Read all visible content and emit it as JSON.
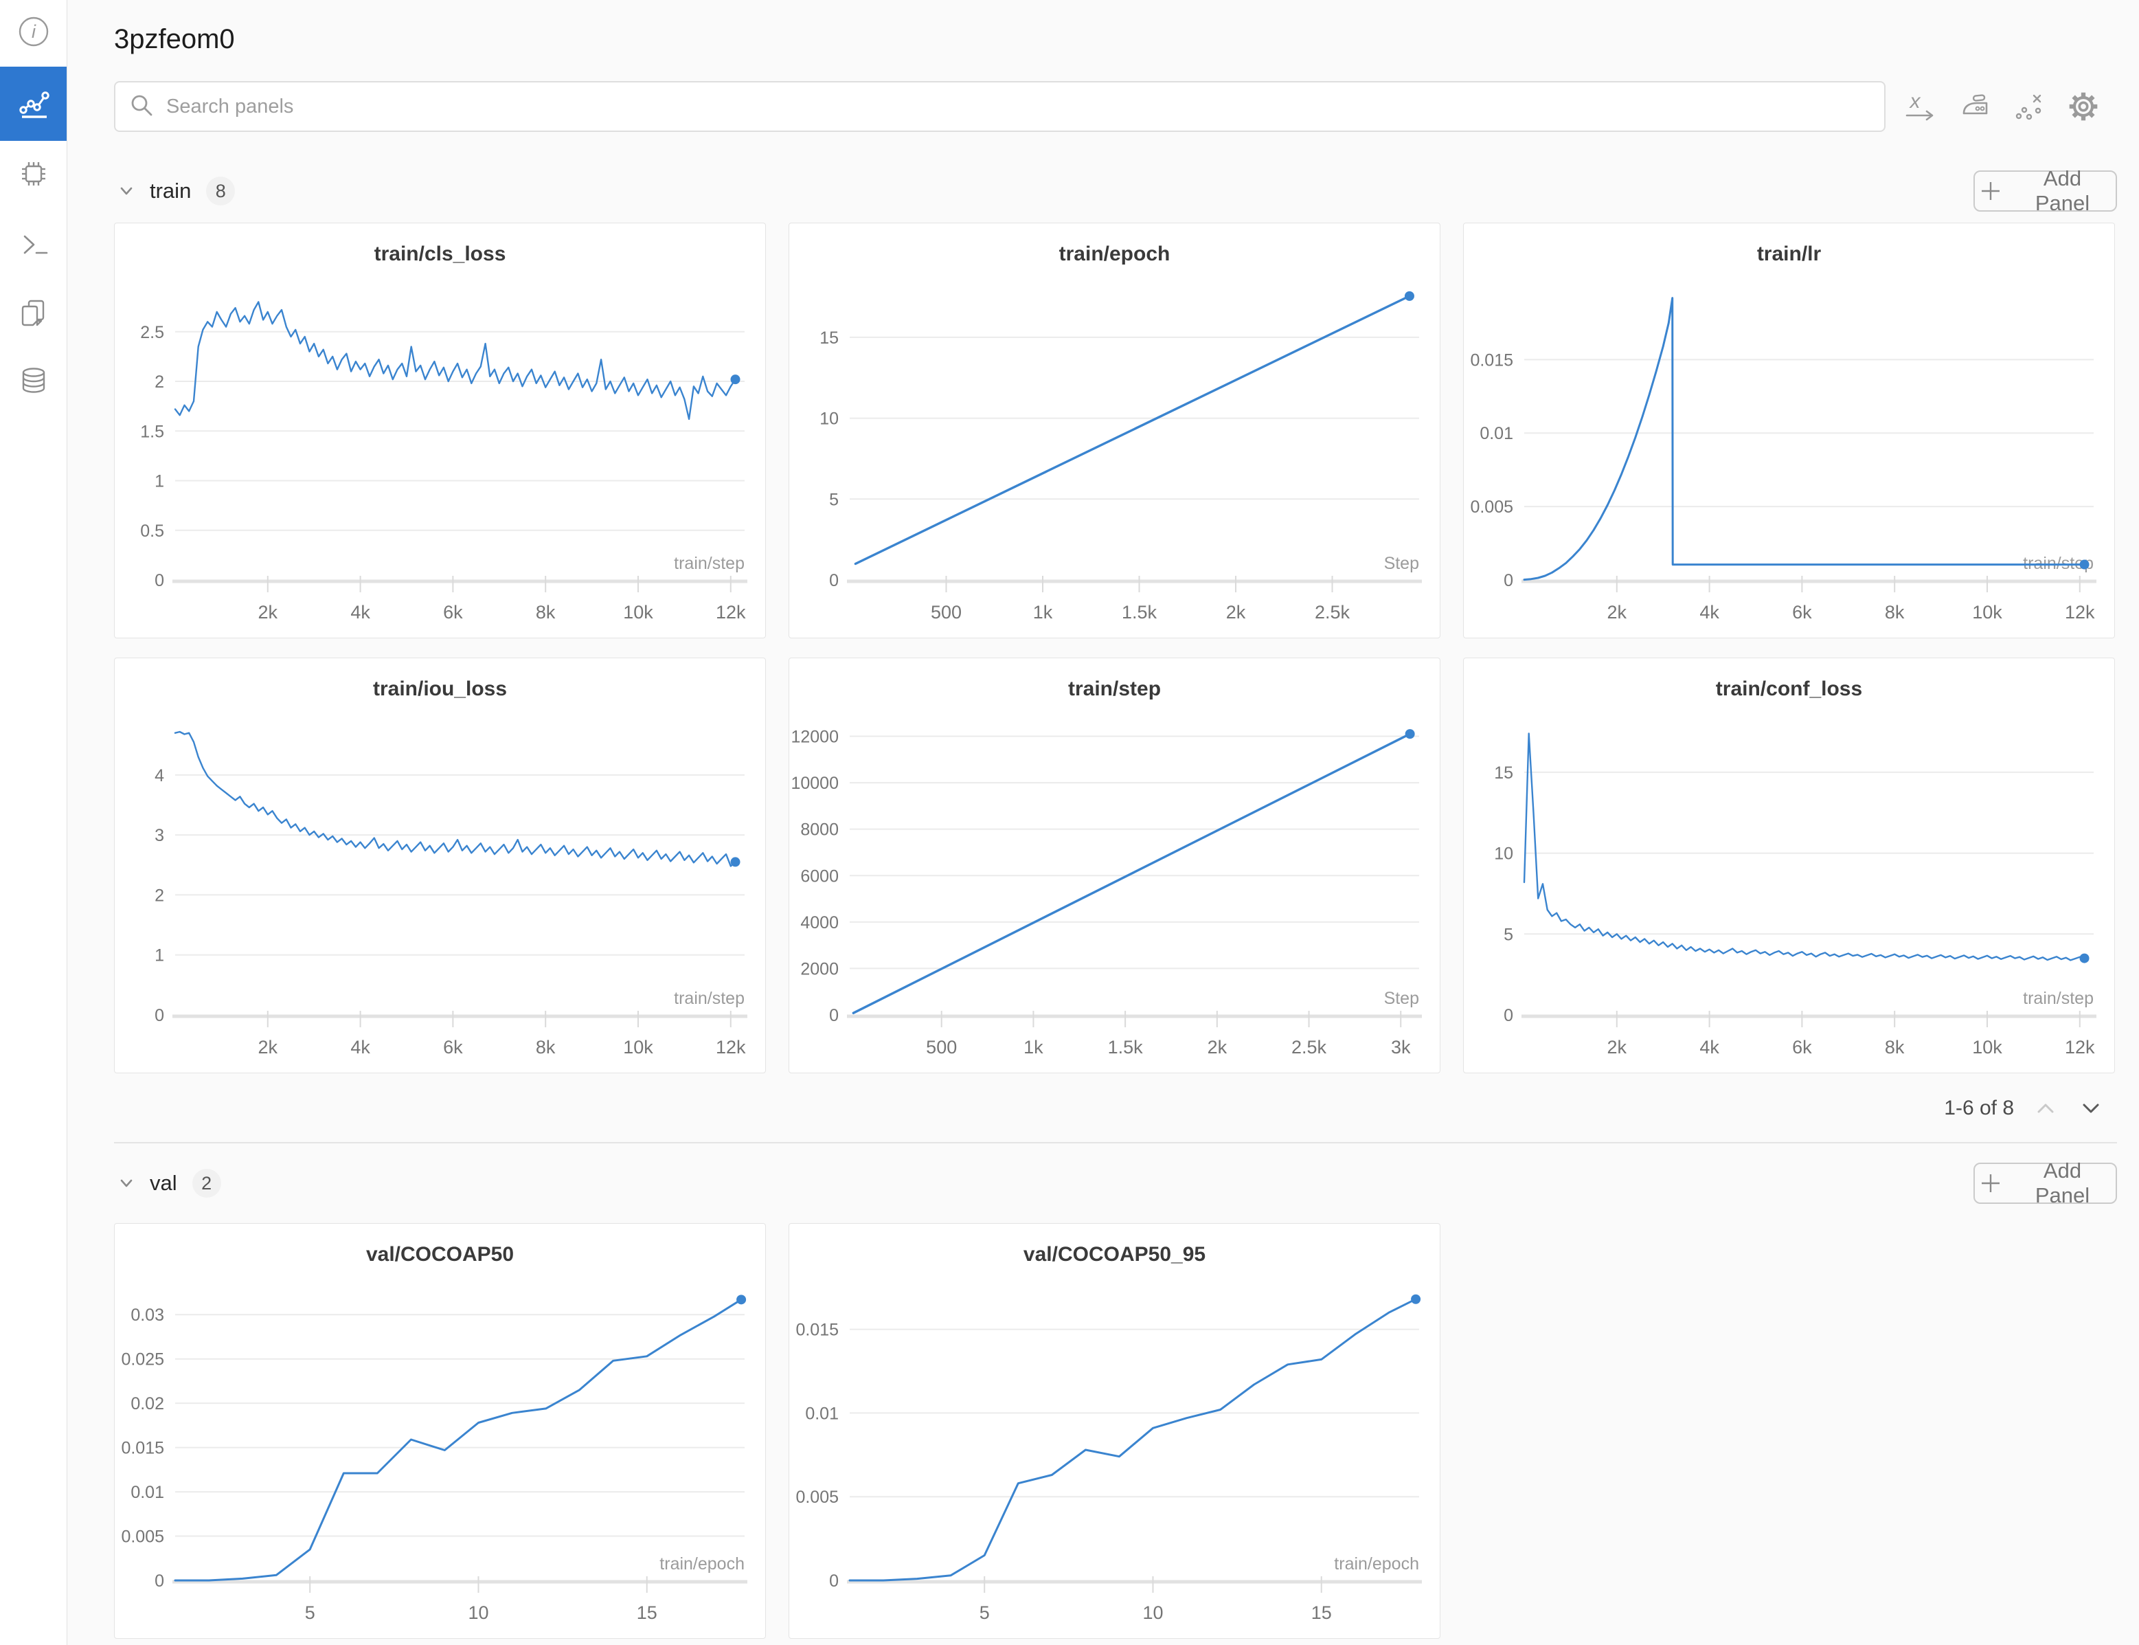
{
  "window": {
    "title": "3pzfeom0"
  },
  "search": {
    "placeholder": "Search panels",
    "value": ""
  },
  "colors": {
    "accent_blue": "#2e78d0",
    "line_blue": "#3a84cf",
    "panel_bg": "#ffffff",
    "page_bg": "#fafafa"
  },
  "sidebar": {
    "items": [
      {
        "icon": "info-icon",
        "selected": false
      },
      {
        "icon": "line-chart-icon",
        "selected": true
      },
      {
        "icon": "chip-icon",
        "selected": false
      },
      {
        "icon": "terminal-icon",
        "selected": false
      },
      {
        "icon": "files-icon",
        "selected": false
      },
      {
        "icon": "database-icon",
        "selected": false
      }
    ]
  },
  "toolbar": {
    "icons": [
      {
        "name": "x-axis-icon"
      },
      {
        "name": "smoothing-icon"
      },
      {
        "name": "outliers-icon"
      },
      {
        "name": "settings-gear-icon"
      }
    ]
  },
  "sections": [
    {
      "id": "train",
      "label": "train",
      "count": "8",
      "add_panel_label": "Add Panel",
      "pagination": {
        "text": "1-6 of 8"
      },
      "panels": [
        0,
        1,
        2,
        3,
        4,
        5
      ]
    },
    {
      "id": "val",
      "label": "val",
      "count": "2",
      "add_panel_label": "Add Panel",
      "panels": [
        6,
        7
      ]
    }
  ],
  "chart_data": [
    {
      "type": "line",
      "title": "train/cls_loss",
      "x_axis_label": "train/step",
      "xlim": [
        0,
        12300
      ],
      "ylim": [
        0,
        2.9
      ],
      "y_ticks": [
        [
          0,
          "0"
        ],
        [
          0.5,
          "0.5"
        ],
        [
          1,
          "1"
        ],
        [
          1.5,
          "1.5"
        ],
        [
          2,
          "2"
        ],
        [
          2.5,
          "2.5"
        ]
      ],
      "x_ticks": [
        [
          2000,
          "2k"
        ],
        [
          4000,
          "4k"
        ],
        [
          6000,
          "6k"
        ],
        [
          8000,
          "8k"
        ],
        [
          10000,
          "10k"
        ],
        [
          12000,
          "12k"
        ]
      ],
      "x_start": 0,
      "x_step": 100,
      "lw": 2.4,
      "y": [
        1.72,
        1.66,
        1.76,
        1.7,
        1.8,
        2.35,
        2.52,
        2.6,
        2.55,
        2.7,
        2.62,
        2.55,
        2.68,
        2.74,
        2.6,
        2.66,
        2.58,
        2.72,
        2.8,
        2.62,
        2.7,
        2.58,
        2.66,
        2.72,
        2.55,
        2.45,
        2.52,
        2.38,
        2.45,
        2.3,
        2.38,
        2.25,
        2.32,
        2.18,
        2.25,
        2.12,
        2.22,
        2.28,
        2.1,
        2.2,
        2.12,
        2.18,
        2.05,
        2.15,
        2.22,
        2.08,
        2.16,
        2.02,
        2.12,
        2.18,
        2.05,
        2.35,
        2.1,
        2.16,
        2.02,
        2.12,
        2.2,
        2.06,
        2.14,
        2.0,
        2.1,
        2.18,
        2.04,
        2.12,
        1.98,
        2.08,
        2.15,
        2.38,
        2.05,
        2.12,
        1.98,
        2.08,
        2.14,
        2.0,
        2.08,
        1.95,
        2.05,
        2.12,
        1.98,
        2.06,
        1.94,
        2.02,
        2.1,
        1.96,
        2.04,
        1.92,
        2.0,
        2.08,
        1.94,
        2.02,
        1.9,
        1.98,
        2.22,
        1.92,
        2.0,
        1.88,
        1.96,
        2.04,
        1.9,
        1.98,
        1.86,
        1.94,
        2.02,
        1.88,
        1.96,
        1.84,
        1.92,
        2.0,
        1.86,
        1.94,
        1.82,
        1.62,
        1.95,
        1.88,
        2.05,
        1.9,
        1.85,
        1.98,
        1.92,
        1.86,
        1.95,
        2.02
      ]
    },
    {
      "type": "line",
      "title": "train/epoch",
      "x_axis_label": "Step",
      "xlim": [
        0,
        2950
      ],
      "ylim": [
        0,
        17.8
      ],
      "y_ticks": [
        [
          0,
          "0"
        ],
        [
          5,
          "5"
        ],
        [
          10,
          "10"
        ],
        [
          15,
          "15"
        ]
      ],
      "x_ticks": [
        [
          500,
          "500"
        ],
        [
          1000,
          "1k"
        ],
        [
          1500,
          "1.5k"
        ],
        [
          2000,
          "2k"
        ],
        [
          2500,
          "2.5k"
        ]
      ],
      "lw": 3.4,
      "points": [
        [
          30,
          1.0
        ],
        [
          2900,
          17.55
        ]
      ]
    },
    {
      "type": "line",
      "title": "train/lr",
      "x_axis_label": "train/step",
      "xlim": [
        0,
        12300
      ],
      "ylim": [
        0,
        0.0196
      ],
      "y_ticks": [
        [
          0,
          "0"
        ],
        [
          0.005,
          "0.005"
        ],
        [
          0.01,
          "0.01"
        ],
        [
          0.015,
          "0.015"
        ]
      ],
      "x_ticks": [
        [
          2000,
          "2k"
        ],
        [
          4000,
          "4k"
        ],
        [
          6000,
          "6k"
        ],
        [
          8000,
          "8k"
        ],
        [
          10000,
          "10k"
        ],
        [
          12000,
          "12k"
        ]
      ],
      "lw": 3,
      "points": [
        [
          0,
          2e-05
        ],
        [
          150,
          6e-05
        ],
        [
          300,
          0.00014
        ],
        [
          450,
          0.00028
        ],
        [
          600,
          0.0005
        ],
        [
          750,
          0.0008
        ],
        [
          900,
          0.00115
        ],
        [
          1050,
          0.0016
        ],
        [
          1200,
          0.0021
        ],
        [
          1350,
          0.0027
        ],
        [
          1500,
          0.0034
        ],
        [
          1650,
          0.0042
        ],
        [
          1800,
          0.0051
        ],
        [
          1950,
          0.0061
        ],
        [
          2100,
          0.0072
        ],
        [
          2250,
          0.0084
        ],
        [
          2400,
          0.0097
        ],
        [
          2550,
          0.0111
        ],
        [
          2700,
          0.0126
        ],
        [
          2850,
          0.0142
        ],
        [
          3000,
          0.0159
        ],
        [
          3120,
          0.0175
        ],
        [
          3200,
          0.0192
        ],
        [
          3208,
          0.00105
        ],
        [
          12100,
          0.00105
        ]
      ]
    },
    {
      "type": "line",
      "title": "train/iou_loss",
      "x_axis_label": "train/step",
      "xlim": [
        0,
        12300
      ],
      "ylim": [
        0,
        4.8
      ],
      "y_ticks": [
        [
          0,
          "0"
        ],
        [
          1,
          "1"
        ],
        [
          2,
          "2"
        ],
        [
          3,
          "3"
        ],
        [
          4,
          "4"
        ]
      ],
      "x_ticks": [
        [
          2000,
          "2k"
        ],
        [
          4000,
          "4k"
        ],
        [
          6000,
          "6k"
        ],
        [
          8000,
          "8k"
        ],
        [
          10000,
          "10k"
        ],
        [
          12000,
          "12k"
        ]
      ],
      "x_start": 0,
      "x_step": 100,
      "lw": 2.4,
      "y": [
        4.7,
        4.72,
        4.68,
        4.7,
        4.55,
        4.3,
        4.12,
        3.98,
        3.9,
        3.82,
        3.76,
        3.7,
        3.64,
        3.58,
        3.64,
        3.52,
        3.46,
        3.52,
        3.4,
        3.46,
        3.34,
        3.4,
        3.28,
        3.2,
        3.26,
        3.12,
        3.18,
        3.06,
        3.12,
        3.0,
        3.06,
        2.96,
        3.02,
        2.92,
        2.98,
        2.88,
        2.94,
        2.84,
        2.9,
        2.8,
        2.88,
        2.78,
        2.86,
        2.95,
        2.78,
        2.85,
        2.74,
        2.82,
        2.9,
        2.76,
        2.84,
        2.72,
        2.8,
        2.88,
        2.74,
        2.82,
        2.7,
        2.78,
        2.86,
        2.72,
        2.8,
        2.92,
        2.74,
        2.82,
        2.7,
        2.78,
        2.86,
        2.72,
        2.8,
        2.68,
        2.76,
        2.84,
        2.7,
        2.78,
        2.92,
        2.72,
        2.8,
        2.68,
        2.76,
        2.84,
        2.7,
        2.78,
        2.66,
        2.74,
        2.82,
        2.68,
        2.76,
        2.64,
        2.72,
        2.8,
        2.66,
        2.74,
        2.62,
        2.7,
        2.78,
        2.64,
        2.72,
        2.6,
        2.68,
        2.76,
        2.62,
        2.7,
        2.58,
        2.66,
        2.74,
        2.6,
        2.68,
        2.56,
        2.64,
        2.72,
        2.58,
        2.66,
        2.54,
        2.62,
        2.7,
        2.56,
        2.64,
        2.52,
        2.6,
        2.68,
        2.48,
        2.55
      ]
    },
    {
      "type": "line",
      "title": "train/step",
      "x_axis_label": "Step",
      "xlim": [
        0,
        3100
      ],
      "ylim": [
        0,
        12400
      ],
      "y_ticks": [
        [
          0,
          "0"
        ],
        [
          2000,
          "2000"
        ],
        [
          4000,
          "4000"
        ],
        [
          6000,
          "6000"
        ],
        [
          8000,
          "8000"
        ],
        [
          10000,
          "10000"
        ],
        [
          12000,
          "12000"
        ]
      ],
      "x_ticks": [
        [
          500,
          "500"
        ],
        [
          1000,
          "1k"
        ],
        [
          1500,
          "1.5k"
        ],
        [
          2000,
          "2k"
        ],
        [
          2500,
          "2.5k"
        ],
        [
          3000,
          "3k"
        ]
      ],
      "lw": 3.4,
      "points": [
        [
          20,
          80
        ],
        [
          3050,
          12100
        ]
      ]
    },
    {
      "type": "line",
      "title": "train/conf_loss",
      "x_axis_label": "train/step",
      "xlim": [
        0,
        12300
      ],
      "ylim": [
        0,
        17.8
      ],
      "y_ticks": [
        [
          0,
          "0"
        ],
        [
          5,
          "5"
        ],
        [
          10,
          "10"
        ],
        [
          15,
          "15"
        ]
      ],
      "x_ticks": [
        [
          2000,
          "2k"
        ],
        [
          4000,
          "4k"
        ],
        [
          6000,
          "6k"
        ],
        [
          8000,
          "8k"
        ],
        [
          10000,
          "10k"
        ],
        [
          12000,
          "12k"
        ]
      ],
      "x_start": 0,
      "x_step": 100,
      "lw": 2.4,
      "y": [
        8.2,
        17.4,
        12.5,
        7.2,
        8.1,
        6.5,
        6.1,
        6.3,
        5.8,
        5.9,
        5.6,
        5.4,
        5.6,
        5.2,
        5.4,
        5.1,
        5.3,
        4.9,
        5.1,
        4.8,
        5.0,
        4.7,
        4.9,
        4.6,
        4.8,
        4.5,
        4.7,
        4.4,
        4.6,
        4.3,
        4.5,
        4.2,
        4.4,
        4.1,
        4.3,
        4.0,
        4.2,
        3.95,
        4.1,
        3.9,
        4.05,
        3.85,
        4.0,
        3.8,
        3.95,
        4.1,
        3.85,
        3.95,
        3.75,
        3.9,
        4.0,
        3.8,
        3.9,
        3.7,
        3.85,
        3.95,
        3.75,
        3.85,
        3.65,
        3.8,
        3.9,
        3.7,
        3.8,
        3.6,
        3.75,
        3.85,
        3.65,
        3.75,
        3.6,
        3.7,
        3.8,
        3.65,
        3.72,
        3.58,
        3.68,
        3.78,
        3.62,
        3.7,
        3.55,
        3.65,
        3.75,
        3.6,
        3.68,
        3.52,
        3.62,
        3.72,
        3.58,
        3.66,
        3.5,
        3.6,
        3.7,
        3.55,
        3.65,
        3.48,
        3.58,
        3.68,
        3.52,
        3.62,
        3.46,
        3.56,
        3.66,
        3.5,
        3.6,
        3.45,
        3.55,
        3.65,
        3.5,
        3.58,
        3.42,
        3.52,
        3.62,
        3.46,
        3.56,
        3.4,
        3.5,
        3.6,
        3.44,
        3.54,
        3.38,
        3.48,
        3.58,
        3.5
      ]
    },
    {
      "type": "line",
      "title": "val/COCOAP50",
      "x_axis_label": "train/epoch",
      "xlim": [
        1,
        17.9
      ],
      "ylim": [
        0,
        0.0325
      ],
      "y_ticks": [
        [
          0,
          "0"
        ],
        [
          0.005,
          "0.005"
        ],
        [
          0.01,
          "0.01"
        ],
        [
          0.015,
          "0.015"
        ],
        [
          0.02,
          "0.02"
        ],
        [
          0.025,
          "0.025"
        ],
        [
          0.03,
          "0.03"
        ]
      ],
      "x_ticks": [
        [
          5,
          "5"
        ],
        [
          10,
          "10"
        ],
        [
          15,
          "15"
        ]
      ],
      "lw": 3,
      "points": [
        [
          1,
          0
        ],
        [
          2,
          0
        ],
        [
          3,
          0.0002
        ],
        [
          4,
          0.0006
        ],
        [
          5,
          0.0035
        ],
        [
          6,
          0.0121
        ],
        [
          7,
          0.0121
        ],
        [
          8,
          0.0159
        ],
        [
          9,
          0.0147
        ],
        [
          10,
          0.0178
        ],
        [
          11,
          0.0189
        ],
        [
          12,
          0.0194
        ],
        [
          13,
          0.0215
        ],
        [
          14,
          0.0248
        ],
        [
          15,
          0.0253
        ],
        [
          16,
          0.0277
        ],
        [
          17,
          0.0298
        ],
        [
          17.8,
          0.0317
        ]
      ]
    },
    {
      "type": "line",
      "title": "val/COCOAP50_95",
      "x_axis_label": "train/epoch",
      "xlim": [
        1,
        17.9
      ],
      "ylim": [
        0,
        0.0172
      ],
      "y_ticks": [
        [
          0,
          "0"
        ],
        [
          0.005,
          "0.005"
        ],
        [
          0.01,
          "0.01"
        ],
        [
          0.015,
          "0.015"
        ]
      ],
      "x_ticks": [
        [
          5,
          "5"
        ],
        [
          10,
          "10"
        ],
        [
          15,
          "15"
        ]
      ],
      "lw": 3,
      "points": [
        [
          1,
          0
        ],
        [
          2,
          0
        ],
        [
          3,
          0.0001
        ],
        [
          4,
          0.0003
        ],
        [
          5,
          0.0015
        ],
        [
          6,
          0.0058
        ],
        [
          7,
          0.0063
        ],
        [
          8,
          0.0078
        ],
        [
          9,
          0.0074
        ],
        [
          10,
          0.0091
        ],
        [
          11,
          0.0097
        ],
        [
          12,
          0.0102
        ],
        [
          13,
          0.0117
        ],
        [
          14,
          0.0129
        ],
        [
          15,
          0.0132
        ],
        [
          16,
          0.0147
        ],
        [
          17,
          0.016
        ],
        [
          17.8,
          0.0168
        ]
      ]
    }
  ]
}
